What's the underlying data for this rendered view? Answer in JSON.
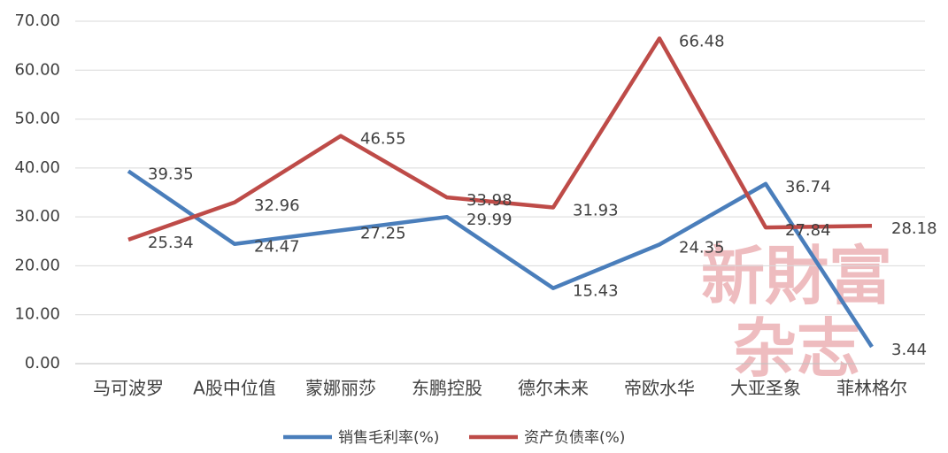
{
  "chart_data": {
    "type": "line",
    "categories": [
      "马可波罗",
      "A股中位值",
      "蒙娜丽莎",
      "东鹏控股",
      "德尔未来",
      "帝欧水华",
      "大亚圣象",
      "菲林格尔"
    ],
    "series": [
      {
        "name": "销售毛利率(%)",
        "color": "#4a7ebb",
        "values": [
          39.35,
          24.47,
          27.25,
          29.99,
          15.43,
          24.35,
          36.74,
          3.44
        ]
      },
      {
        "name": "资产负债率(%)",
        "color": "#be4b48",
        "values": [
          25.34,
          32.96,
          46.55,
          33.98,
          31.93,
          66.48,
          27.84,
          28.18
        ]
      }
    ],
    "ylim": [
      0,
      70
    ],
    "yticks": [
      {
        "value": 0,
        "label": "0.00"
      },
      {
        "value": 10,
        "label": "10.00"
      },
      {
        "value": 20,
        "label": "20.00"
      },
      {
        "value": 30,
        "label": "30.00"
      },
      {
        "value": 40,
        "label": "40.00"
      },
      {
        "value": 50,
        "label": "50.00"
      },
      {
        "value": 60,
        "label": "60.00"
      },
      {
        "value": 70,
        "label": "70.00"
      }
    ],
    "grid": true,
    "legend": "bottom",
    "watermark": [
      "新財富",
      "杂志"
    ]
  }
}
